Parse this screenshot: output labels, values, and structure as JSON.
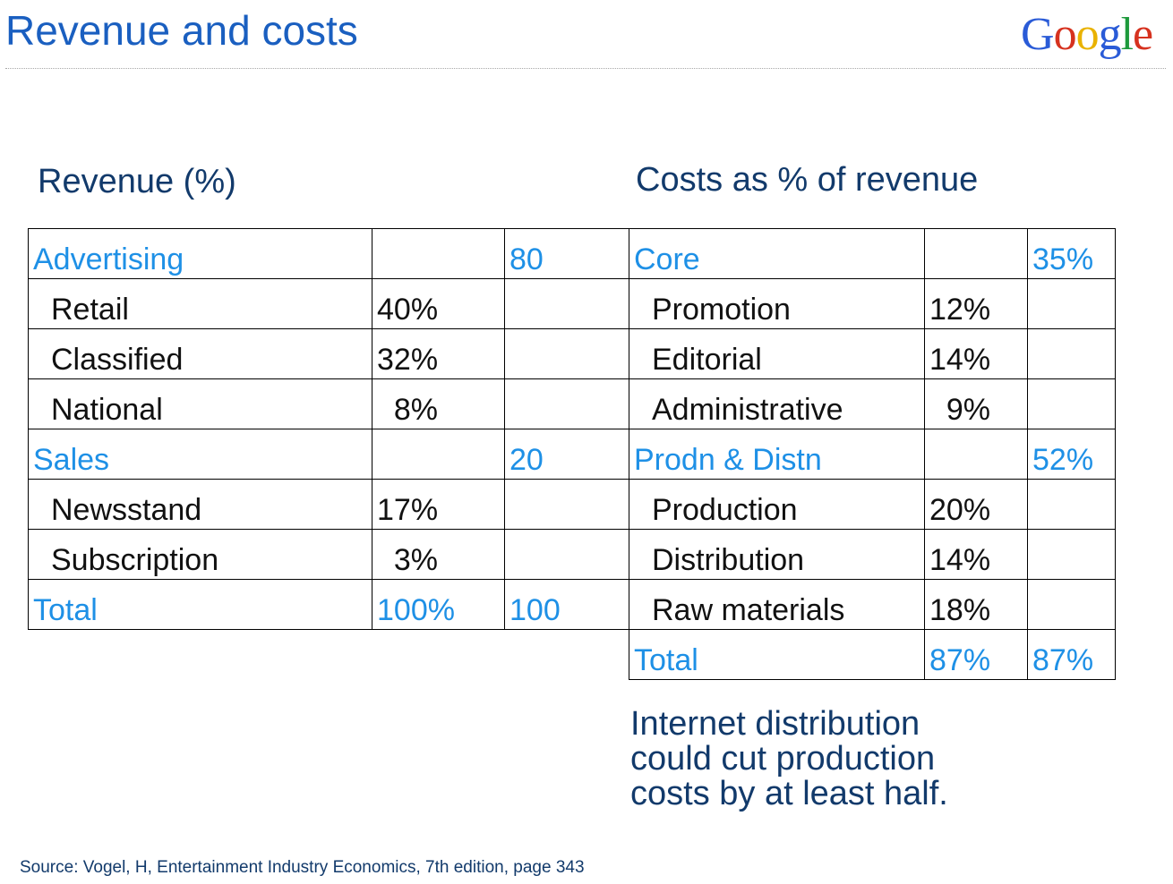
{
  "slide": {
    "title": "Revenue and costs",
    "logo": {
      "letters": [
        "G",
        "o",
        "o",
        "g",
        "l",
        "e"
      ],
      "colors": [
        "#2a5bd7",
        "#d6321f",
        "#e9b200",
        "#2a5bd7",
        "#1e9a3c",
        "#d6321f"
      ]
    }
  },
  "revenue": {
    "heading": "Revenue (%)",
    "rows": [
      {
        "label": "Advertising",
        "pct": "",
        "total": "80",
        "style": "category"
      },
      {
        "label": "Retail",
        "pct": "40%",
        "total": "",
        "style": "item"
      },
      {
        "label": "Classified",
        "pct": "32%",
        "total": "",
        "style": "item"
      },
      {
        "label": "National",
        "pct": "  8%",
        "total": "",
        "style": "item"
      },
      {
        "label": "Sales",
        "pct": "",
        "total": "20",
        "style": "category"
      },
      {
        "label": "Newsstand",
        "pct": "17%",
        "total": "",
        "style": "item"
      },
      {
        "label": "Subscription",
        "pct": "  3%",
        "total": "",
        "style": "item"
      },
      {
        "label": "Total",
        "pct": "100%",
        "total": "100",
        "style": "total"
      }
    ]
  },
  "costs": {
    "heading": "Costs as % of revenue",
    "rows": [
      {
        "label": "Core",
        "pct": "",
        "total": "35%",
        "style": "category"
      },
      {
        "label": "Promotion",
        "pct": "12%",
        "total": "",
        "style": "item"
      },
      {
        "label": "Editorial",
        "pct": "14%",
        "total": "",
        "style": "item"
      },
      {
        "label": "Administrative",
        "pct": "  9%",
        "total": "",
        "style": "item"
      },
      {
        "label": "Prodn & Distn",
        "pct": "",
        "total": "52%",
        "style": "category"
      },
      {
        "label": "Production",
        "pct": "20%",
        "total": "",
        "style": "item"
      },
      {
        "label": "Distribution",
        "pct": "14%",
        "total": "",
        "style": "item"
      },
      {
        "label": "Raw materials",
        "pct": "18%",
        "total": "",
        "style": "item"
      },
      {
        "label": "Total",
        "pct": "87%",
        "total": "87%",
        "style": "total"
      }
    ]
  },
  "note": {
    "lines": [
      "Internet distribution",
      "could cut production",
      "costs by at least half."
    ]
  },
  "source": "Source: Vogel, H, Entertainment Industry Economics, 7th edition, page 343"
}
